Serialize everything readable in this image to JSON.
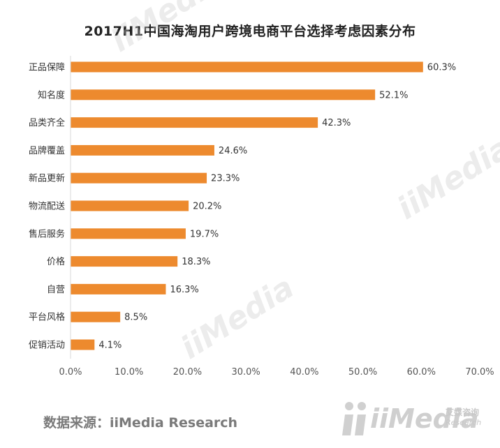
{
  "title": "2017H1中国海淘用户跨境电商平台选择考虑因素分布",
  "source": "数据来源：iiMedia Research",
  "watermark": {
    "brand": "iiMedia",
    "cn": "艾媒咨询",
    "en": "Research"
  },
  "chart_data": {
    "type": "bar",
    "orientation": "horizontal",
    "categories": [
      "正品保障",
      "知名度",
      "品类齐全",
      "品牌覆盖",
      "新品更新",
      "物流配送",
      "售后服务",
      "价格",
      "自营",
      "平台风格",
      "促销活动"
    ],
    "values": [
      60.3,
      52.1,
      42.3,
      24.6,
      23.3,
      20.2,
      19.7,
      18.3,
      16.3,
      8.5,
      4.1
    ],
    "value_labels": [
      "60.3%",
      "52.1%",
      "42.3%",
      "24.6%",
      "23.3%",
      "20.2%",
      "19.7%",
      "18.3%",
      "16.3%",
      "8.5%",
      "4.1%"
    ],
    "xlim": [
      0,
      70
    ],
    "xticks": [
      "0.0%",
      "10.0%",
      "20.0%",
      "30.0%",
      "40.0%",
      "50.0%",
      "60.0%",
      "70.0%"
    ],
    "bar_color": "#ed8a2e",
    "grid": false,
    "legend": "none"
  }
}
